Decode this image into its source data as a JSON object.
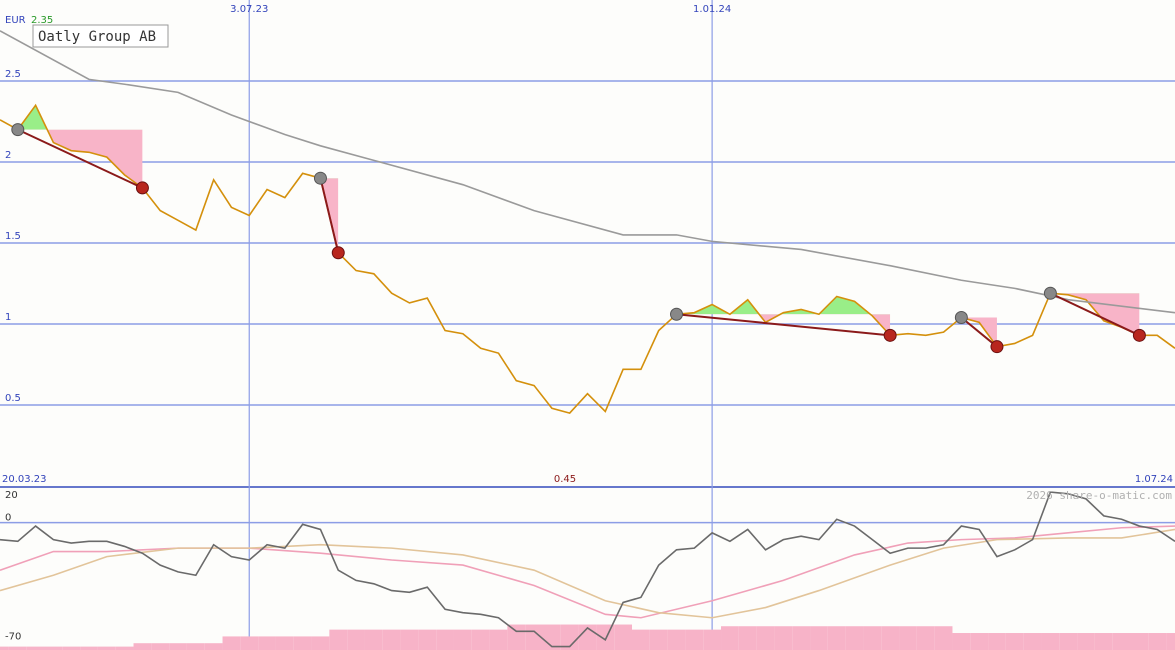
{
  "chart_data": [
    {
      "type": "line",
      "title": "Oatly Group AB",
      "ylabel": "EUR",
      "high": 2.35,
      "low": 0.45,
      "xlim": [
        0,
        66
      ],
      "xticks": [
        {
          "value": 14,
          "label": "3.07.23"
        },
        {
          "value": 40,
          "label": "1.01.24"
        }
      ],
      "xrange_labels": [
        {
          "value": 0,
          "label": "20.03.23"
        },
        {
          "value": 66,
          "label": "1.07.24"
        }
      ],
      "ylim": [
        0,
        3
      ],
      "yticks": [
        0.5,
        1,
        1.5,
        2,
        2.5
      ],
      "grid": true,
      "grid_color": "#8c9de6",
      "x": [
        0,
        1,
        2,
        3,
        4,
        5,
        6,
        7,
        8,
        9,
        10,
        11,
        12,
        13,
        14,
        15,
        16,
        17,
        18,
        19,
        20,
        21,
        22,
        23,
        24,
        25,
        26,
        27,
        28,
        29,
        30,
        31,
        32,
        33,
        34,
        35,
        36,
        37,
        38,
        39,
        40,
        41,
        42,
        43,
        44,
        45,
        46,
        47,
        48,
        49,
        50,
        51,
        52,
        53,
        54,
        55,
        56,
        57,
        58,
        59,
        60,
        61,
        62,
        63,
        64,
        65,
        66
      ],
      "series": [
        {
          "color": "#d4900c",
          "values": [
            2.26,
            2.2,
            2.35,
            2.12,
            2.07,
            2.06,
            2.03,
            1.92,
            1.84,
            1.7,
            1.64,
            1.58,
            1.89,
            1.72,
            1.67,
            1.83,
            1.78,
            1.93,
            1.9,
            1.44,
            1.33,
            1.31,
            1.19,
            1.13,
            1.16,
            0.96,
            0.94,
            0.85,
            0.82,
            0.65,
            0.62,
            0.48,
            0.45,
            0.57,
            0.46,
            0.72,
            0.72,
            0.96,
            1.06,
            1.07,
            1.12,
            1.06,
            1.15,
            1.01,
            1.07,
            1.09,
            1.06,
            1.17,
            1.14,
            1.05,
            0.93,
            0.94,
            0.93,
            0.95,
            1.04,
            1.01,
            0.86,
            0.88,
            0.93,
            1.19,
            1.18,
            1.15,
            1.02,
            0.98,
            0.93,
            0.93,
            0.85
          ]
        },
        {
          "color": "#9a9a9a",
          "x": [
            0,
            5,
            7,
            10,
            13,
            16,
            18,
            21,
            26,
            30,
            35,
            38,
            40,
            45,
            50,
            54,
            57,
            60,
            66
          ],
          "values": [
            2.81,
            2.51,
            2.48,
            2.43,
            2.29,
            2.17,
            2.1,
            2.01,
            1.86,
            1.7,
            1.55,
            1.55,
            1.51,
            1.46,
            1.36,
            1.27,
            1.22,
            1.15,
            1.07
          ]
        }
      ],
      "trends": [
        {
          "start": [
            1,
            2.2
          ],
          "end": [
            8,
            1.84
          ]
        },
        {
          "start": [
            18,
            1.9
          ],
          "end": [
            19,
            1.44
          ]
        },
        {
          "start": [
            38,
            1.06
          ],
          "end": [
            50,
            0.93
          ]
        },
        {
          "start": [
            54,
            1.04
          ],
          "end": [
            56,
            0.86
          ]
        },
        {
          "start": [
            59,
            1.19
          ],
          "end": [
            64,
            0.93
          ]
        }
      ]
    },
    {
      "type": "line",
      "credit": "2026 share-o-matic.com",
      "xlim": [
        0,
        66
      ],
      "ylim": [
        -75,
        21
      ],
      "yticks": [
        20,
        0,
        -70
      ],
      "zero_line": true,
      "x": [
        0,
        1,
        2,
        3,
        4,
        5,
        6,
        7,
        8,
        9,
        10,
        11,
        12,
        13,
        14,
        15,
        16,
        17,
        18,
        19,
        20,
        21,
        22,
        23,
        24,
        25,
        26,
        27,
        28,
        29,
        30,
        31,
        32,
        33,
        34,
        35,
        36,
        37,
        38,
        39,
        40,
        41,
        42,
        43,
        44,
        45,
        46,
        47,
        48,
        49,
        50,
        51,
        52,
        53,
        54,
        55,
        56,
        57,
        58,
        59,
        60,
        61,
        62,
        63,
        64,
        65,
        66
      ],
      "series": [
        {
          "type": "bar",
          "color": "#f7b3c8",
          "values": [
            -73,
            -73,
            -73,
            -73,
            -73,
            -73,
            -73,
            -73,
            -71,
            -71,
            -71,
            -71,
            -71,
            -67,
            -67,
            -67,
            -67,
            -67,
            -67,
            -63,
            -63,
            -63,
            -63,
            -63,
            -63,
            -63,
            -63,
            -63,
            -63,
            -60,
            -60,
            -60,
            -60,
            -60,
            -60,
            -60,
            -63,
            -63,
            -63,
            -63,
            -63,
            -61,
            -61,
            -61,
            -61,
            -61,
            -61,
            -61,
            -61,
            -61,
            -61,
            -61,
            -61,
            -61,
            -65,
            -65,
            -65,
            -65,
            -65,
            -65,
            -65,
            -65,
            -65,
            -65,
            -65,
            -65,
            -65
          ]
        },
        {
          "color": "#f0a0b8",
          "x": [
            0,
            3,
            6,
            10,
            14,
            18,
            22,
            26,
            30,
            34,
            36,
            40,
            44,
            48,
            51,
            54,
            57,
            60,
            63,
            66
          ],
          "values": [
            -28,
            -17,
            -17,
            -15,
            -15,
            -18,
            -22,
            -25,
            -37,
            -54,
            -56,
            -46,
            -34,
            -19,
            -12,
            -10,
            -9,
            -6,
            -3,
            -2
          ]
        },
        {
          "color": "#e2c49a",
          "x": [
            0,
            3,
            6,
            10,
            14,
            18,
            22,
            26,
            30,
            34,
            37,
            40,
            43,
            46,
            50,
            53,
            56,
            60,
            63,
            66
          ],
          "values": [
            -40,
            -31,
            -20,
            -15,
            -15,
            -13,
            -15,
            -19,
            -28,
            -46,
            -53,
            -56,
            -50,
            -40,
            -25,
            -15,
            -10,
            -9,
            -9,
            -4
          ]
        },
        {
          "color": "#6a6a6a",
          "values": [
            -10,
            -11,
            -2,
            -10,
            -12,
            -11,
            -11,
            -14,
            -18,
            -25,
            -29,
            -31,
            -13,
            -20,
            -22,
            -13,
            -15,
            -1,
            -4,
            -28,
            -34,
            -36,
            -40,
            -41,
            -38,
            -51,
            -53,
            -54,
            -56,
            -64,
            -64,
            -73,
            -73,
            -62,
            -69,
            -47,
            -44,
            -25,
            -16,
            -15,
            -6,
            -11,
            -4,
            -16,
            -10,
            -8,
            -10,
            2,
            -2,
            -10,
            -18,
            -15,
            -15,
            -13,
            -2,
            -4,
            -20,
            -16,
            -10,
            18,
            17,
            14,
            4,
            2,
            -2,
            -4,
            -11
          ]
        }
      ]
    }
  ]
}
